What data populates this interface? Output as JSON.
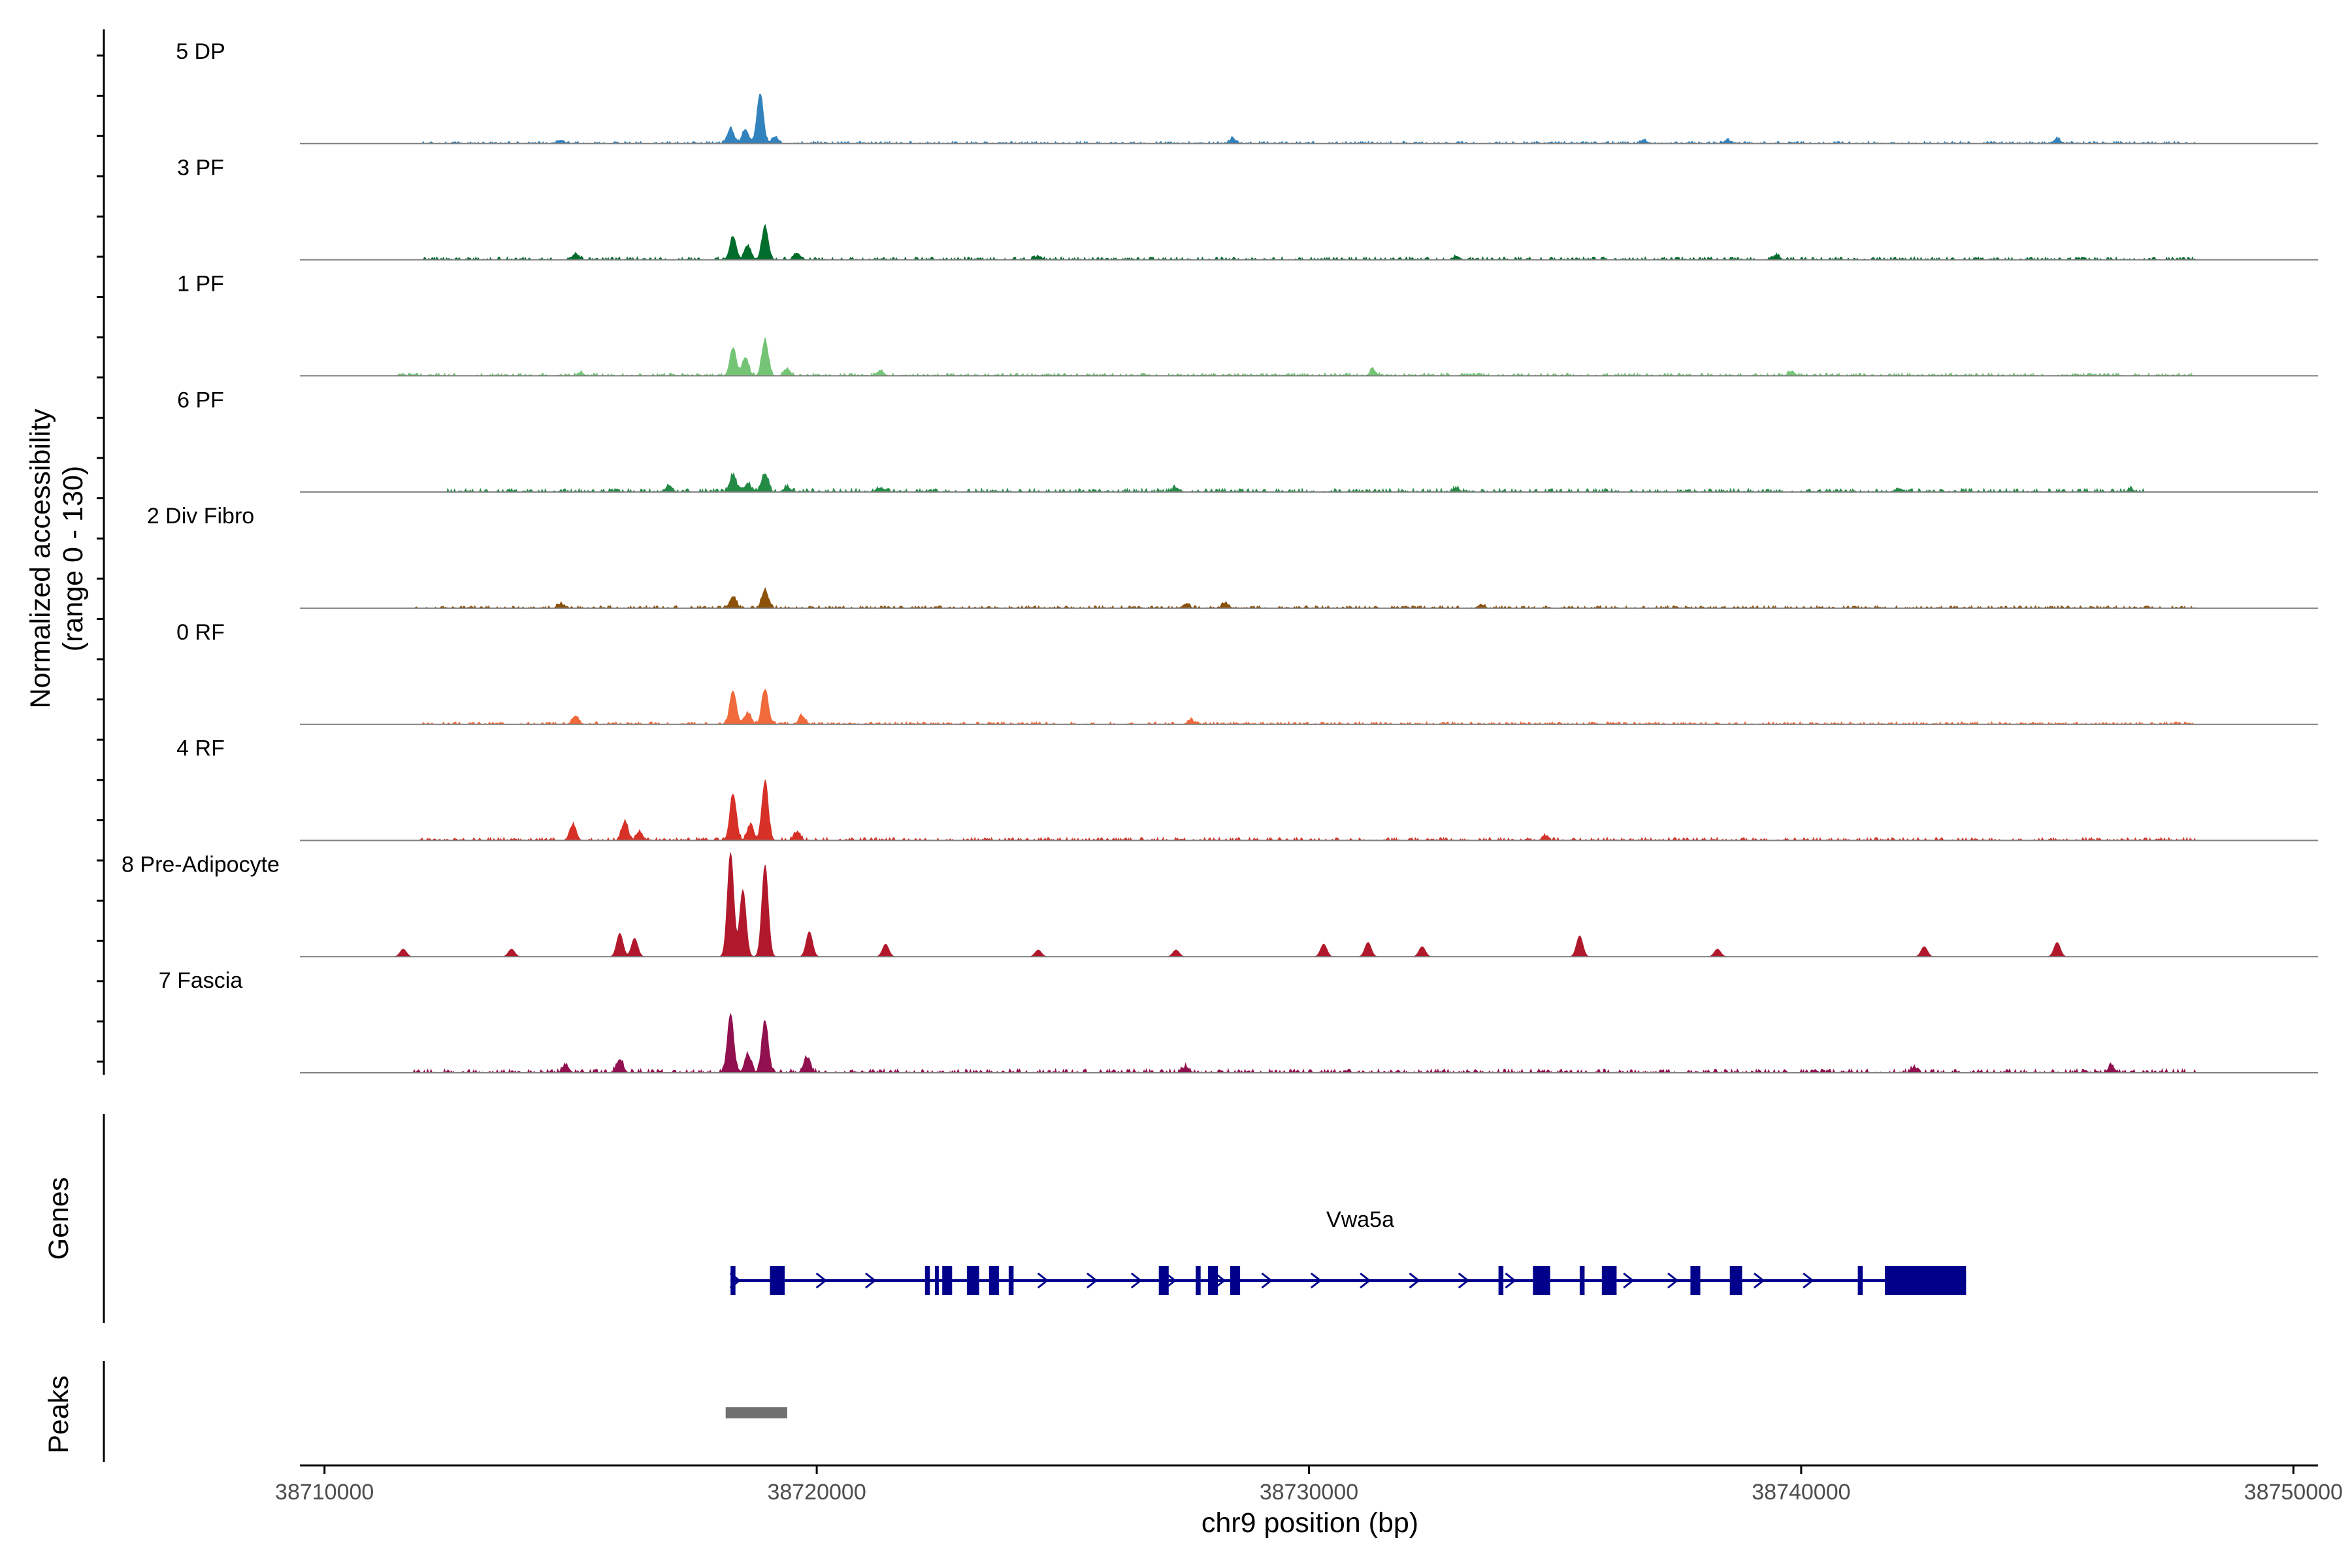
{
  "chart_data": {
    "type": "area",
    "title": "",
    "ylabel_line1": "Normalized accessibility",
    "ylabel_line2": "(range 0 - 130)",
    "y_range": [
      0,
      130
    ],
    "xlabel": "chr9 position (bp)",
    "x_range": [
      38709500,
      38750500
    ],
    "x_ticks": [
      {
        "value": 38710000,
        "label": "38710000"
      },
      {
        "value": 38720000,
        "label": "38720000"
      },
      {
        "value": 38730000,
        "label": "38730000"
      },
      {
        "value": 38740000,
        "label": "38740000"
      },
      {
        "value": 38750000,
        "label": "38750000"
      }
    ],
    "tracks": [
      {
        "name": "5 DP",
        "color": "#3182bd",
        "peaks": [
          [
            38718250,
            18
          ],
          [
            38718550,
            17
          ],
          [
            38718850,
            60
          ],
          [
            38719150,
            8
          ],
          [
            38728450,
            6
          ],
          [
            38745200,
            6
          ],
          [
            38736800,
            4
          ],
          [
            38714800,
            4
          ],
          [
            38738500,
            4
          ]
        ],
        "noise": [
          38712000,
          38748000,
          0.9
        ],
        "seed": 11
      },
      {
        "name": "3 PF",
        "color": "#006d2c",
        "peaks": [
          [
            38718300,
            28
          ],
          [
            38718600,
            16
          ],
          [
            38718950,
            40
          ],
          [
            38719600,
            8
          ],
          [
            38715100,
            7
          ],
          [
            38724500,
            4
          ],
          [
            38733000,
            4
          ],
          [
            38739500,
            5
          ]
        ],
        "noise": [
          38712000,
          38748000,
          1.1
        ],
        "seed": 23
      },
      {
        "name": "1 PF",
        "color": "#74c476",
        "peaks": [
          [
            38718300,
            33
          ],
          [
            38718550,
            22
          ],
          [
            38718950,
            43
          ],
          [
            38719400,
            8
          ],
          [
            38721300,
            6
          ],
          [
            38731300,
            7
          ],
          [
            38739800,
            5
          ],
          [
            38715200,
            4
          ]
        ],
        "noise": [
          38711500,
          38748000,
          1.1
        ],
        "seed": 37
      },
      {
        "name": "6 PF",
        "color": "#238b45",
        "peaks": [
          [
            38718300,
            20
          ],
          [
            38718600,
            10
          ],
          [
            38718950,
            22
          ],
          [
            38719400,
            6
          ],
          [
            38717000,
            8
          ],
          [
            38721300,
            5
          ],
          [
            38727300,
            5
          ],
          [
            38733000,
            4
          ],
          [
            38742000,
            4
          ],
          [
            38746700,
            3
          ]
        ],
        "noise": [
          38712500,
          38747000,
          1.4
        ],
        "seed": 41
      },
      {
        "name": "2 Div Fibro",
        "color": "#8c510a",
        "peaks": [
          [
            38718300,
            14
          ],
          [
            38718950,
            22
          ],
          [
            38714800,
            5
          ],
          [
            38727500,
            5
          ],
          [
            38728300,
            6
          ],
          [
            38733500,
            4
          ]
        ],
        "noise": [
          38711800,
          38748000,
          1.0
        ],
        "seed": 53
      },
      {
        "name": "0 RF",
        "color": "#f16a3b",
        "peaks": [
          [
            38718300,
            40
          ],
          [
            38718600,
            13
          ],
          [
            38718950,
            42
          ],
          [
            38719700,
            10
          ],
          [
            38715100,
            10
          ],
          [
            38727600,
            5
          ]
        ],
        "noise": [
          38712000,
          38748000,
          1.0
        ],
        "seed": 67
      },
      {
        "name": "4 RF",
        "color": "#d73027",
        "peaks": [
          [
            38718300,
            56
          ],
          [
            38718650,
            18
          ],
          [
            38718950,
            70
          ],
          [
            38719600,
            10
          ],
          [
            38715050,
            19
          ],
          [
            38716100,
            22
          ],
          [
            38716400,
            10
          ],
          [
            38734800,
            5
          ]
        ],
        "noise": [
          38711800,
          38748000,
          1.2
        ],
        "seed": 71
      },
      {
        "name": "8 Pre-Adipocyte",
        "color": "#b2182b",
        "peaks": [
          [
            38718250,
            125
          ],
          [
            38718500,
            80
          ],
          [
            38718950,
            110
          ],
          [
            38719850,
            30
          ],
          [
            38716000,
            28
          ],
          [
            38716300,
            22
          ],
          [
            38721400,
            15
          ],
          [
            38730300,
            15
          ],
          [
            38731200,
            17
          ],
          [
            38735500,
            25
          ],
          [
            38745200,
            17
          ],
          [
            38742500,
            12
          ],
          [
            38711600,
            9
          ],
          [
            38713800,
            9
          ],
          [
            38727300,
            8
          ],
          [
            38732300,
            12
          ],
          [
            38738300,
            9
          ],
          [
            38724500,
            8
          ]
        ],
        "noise": [
          38711500,
          38748000,
          0.0
        ],
        "seed": 83
      },
      {
        "name": "7 Fascia",
        "color": "#91104f",
        "peaks": [
          [
            38718250,
            68
          ],
          [
            38718600,
            22
          ],
          [
            38718950,
            62
          ],
          [
            38719800,
            18
          ],
          [
            38716000,
            16
          ],
          [
            38714900,
            9
          ],
          [
            38742300,
            6
          ],
          [
            38727500,
            7
          ],
          [
            38746300,
            8
          ]
        ],
        "noise": [
          38711800,
          38748000,
          1.5
        ],
        "seed": 97
      }
    ],
    "genes_label": "Genes",
    "gene": {
      "name": "Vwa5a",
      "color": "#00008b",
      "start": 38718250,
      "end": 38743350,
      "exons": [
        [
          38718250,
          38718350
        ],
        [
          38719050,
          38719350
        ],
        [
          38722200,
          38722300
        ],
        [
          38722400,
          38722450
        ],
        [
          38722550,
          38722750
        ],
        [
          38723050,
          38723300
        ],
        [
          38723500,
          38723700
        ],
        [
          38723900,
          38724000
        ],
        [
          38726950,
          38727150
        ],
        [
          38727700,
          38727800
        ],
        [
          38727950,
          38728150
        ],
        [
          38728400,
          38728600
        ],
        [
          38733850,
          38733950
        ],
        [
          38734550,
          38734900
        ],
        [
          38735500,
          38735600
        ],
        [
          38735950,
          38736250
        ],
        [
          38737750,
          38737950
        ],
        [
          38738550,
          38738800
        ],
        [
          38741150,
          38741250
        ],
        [
          38741700,
          38743350
        ]
      ],
      "arrows": [
        38718350,
        38720100,
        38721100,
        38724600,
        38725600,
        38726500,
        38727200,
        38728200,
        38729150,
        38730150,
        38731150,
        38732150,
        38733150,
        38734100,
        38736500,
        38737400,
        38739150,
        38740150
      ]
    },
    "peaks_label": "Peaks",
    "peak_regions": [
      [
        38718150,
        38719400
      ]
    ],
    "peak_color": "#707070"
  }
}
